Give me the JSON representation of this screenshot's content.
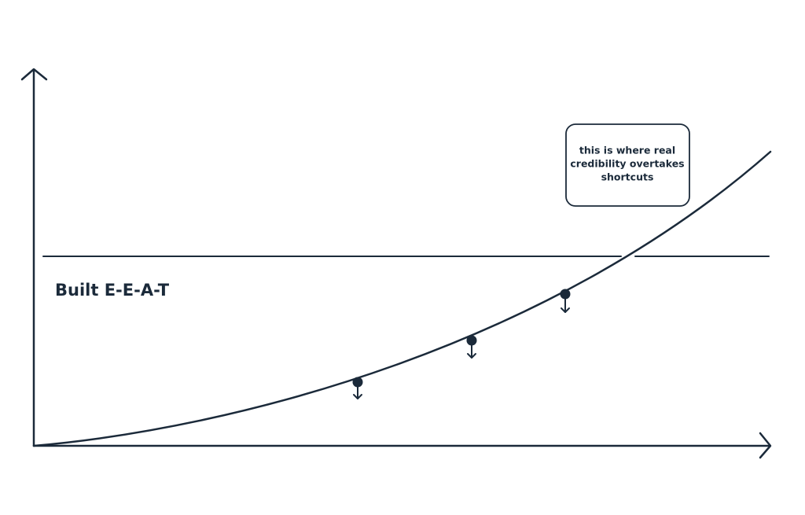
{
  "label": "Built E-E-A-T",
  "callout": {
    "lines": [
      "this is where real",
      "credibility overtakes",
      "shortcuts"
    ]
  }
}
